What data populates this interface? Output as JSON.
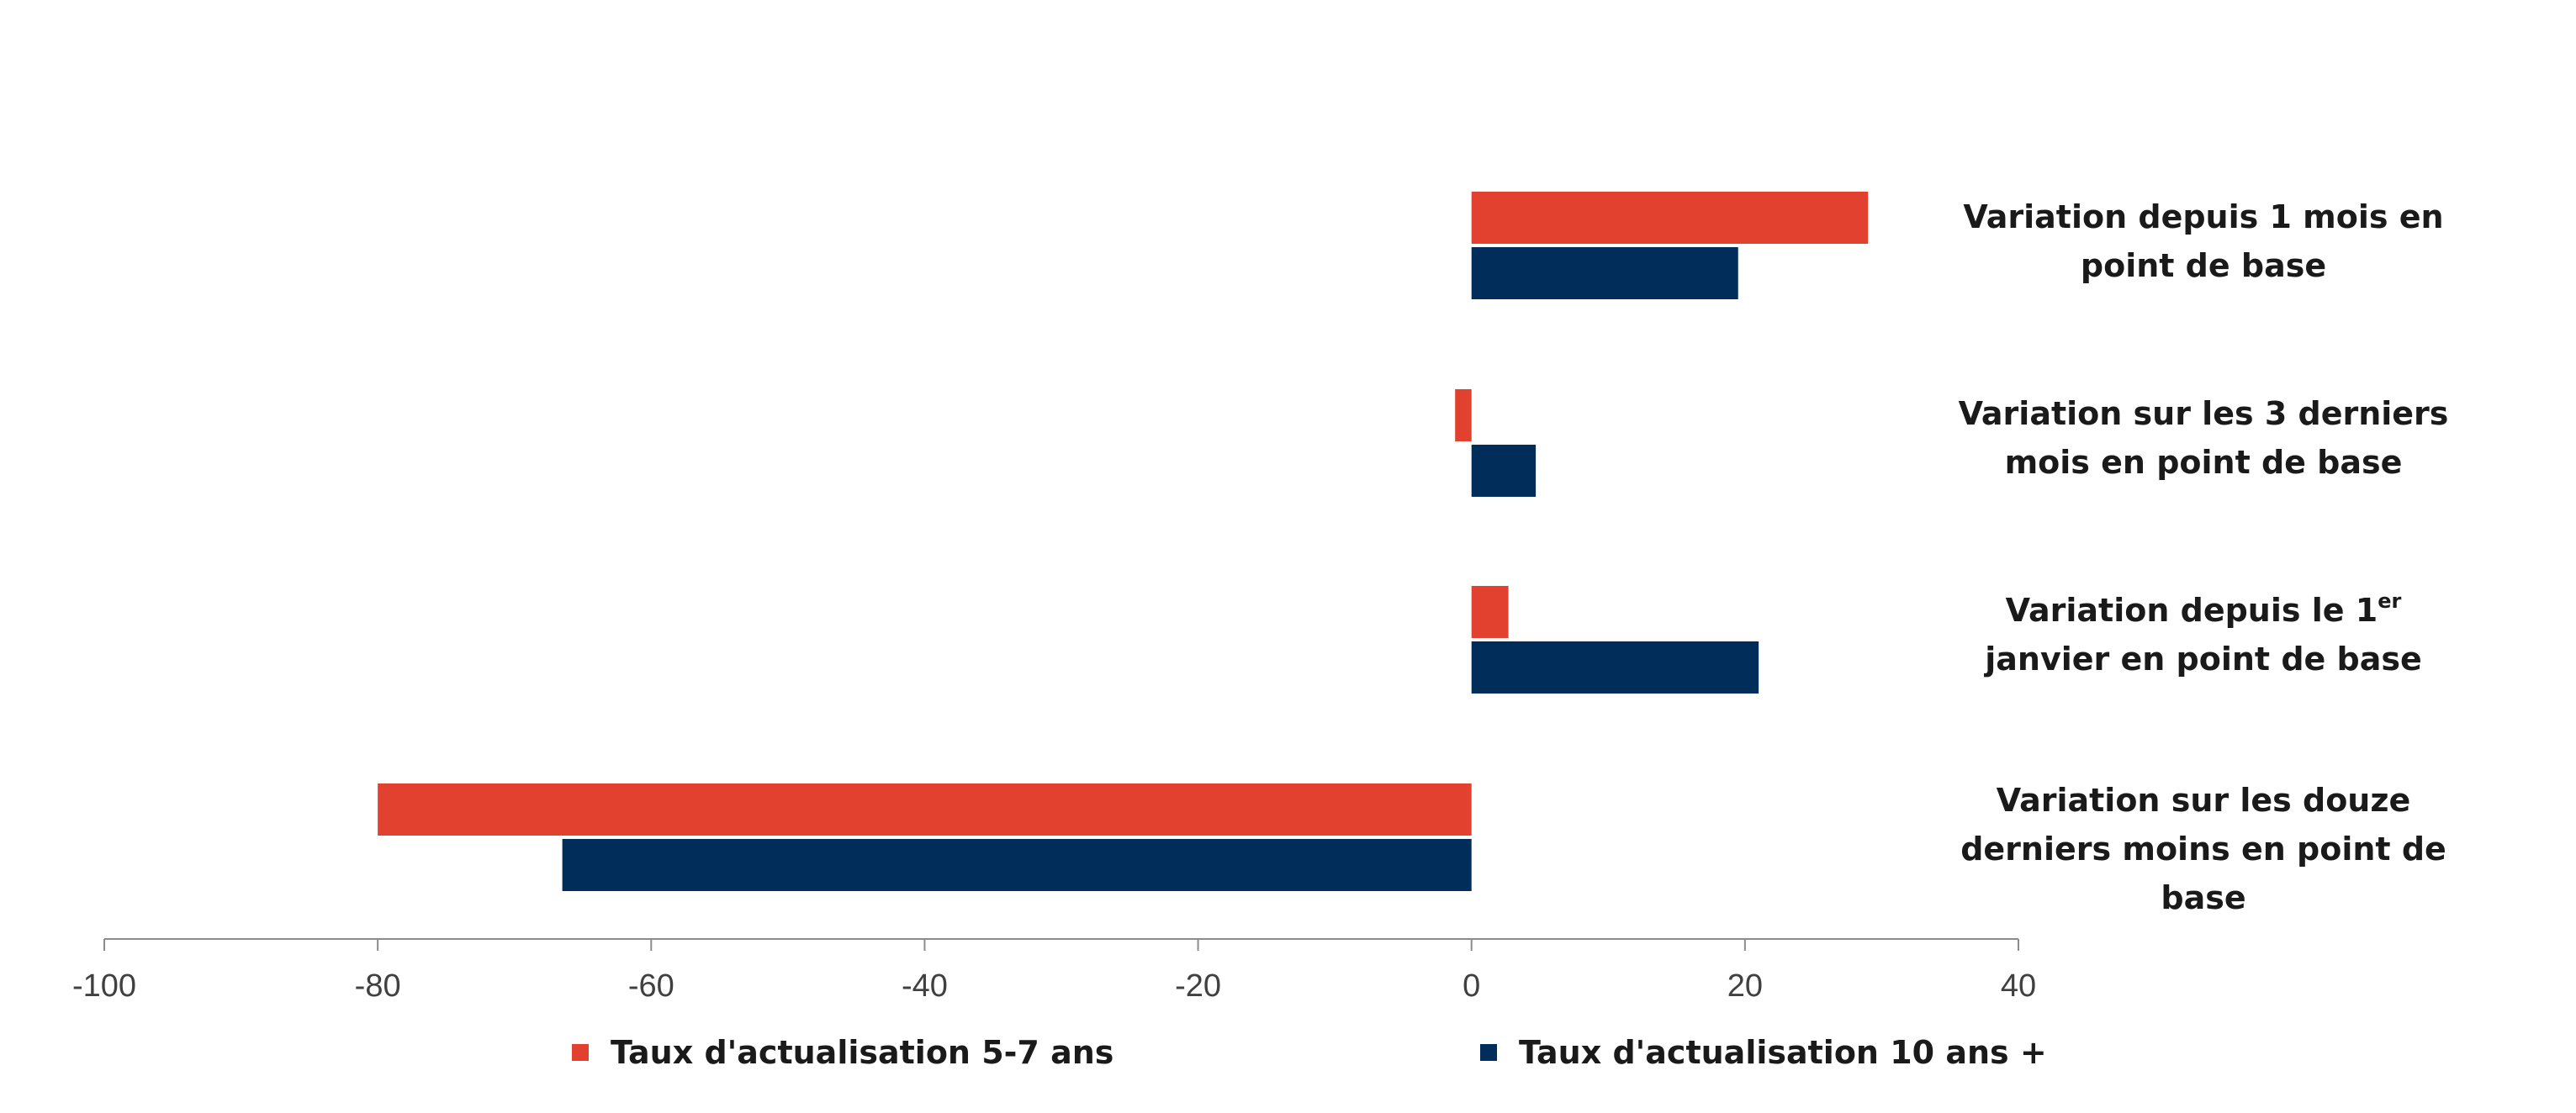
{
  "chart_data": {
    "type": "bar",
    "orientation": "horizontal",
    "categories": [
      {
        "lines": [
          "Variation depuis 1 mois en",
          "point de base"
        ]
      },
      {
        "lines": [
          "Variation sur les 3 derniers",
          "mois en point de base"
        ]
      },
      {
        "lines": [
          "Variation depuis le 1",
          "janvier en point de base"
        ],
        "superscript": "er"
      },
      {
        "lines": [
          "Variation sur les douze",
          "derniers moins en point de",
          "base"
        ]
      }
    ],
    "series": [
      {
        "name": "Taux d'actualisation 5-7 ans",
        "color": "#e1412e",
        "values": [
          29,
          -1.2,
          2.7,
          -80
        ]
      },
      {
        "name": "Taux d'actualisation 10 ans +",
        "color": "#002d5a",
        "values": [
          19.5,
          4.7,
          21,
          -66.5
        ]
      }
    ],
    "xlim": [
      -100,
      40
    ],
    "xticks": [
      "-100",
      "-80",
      "-60",
      "-40",
      "-20",
      "0",
      "20",
      "40"
    ],
    "grid": false,
    "legend_position": "bottom"
  }
}
